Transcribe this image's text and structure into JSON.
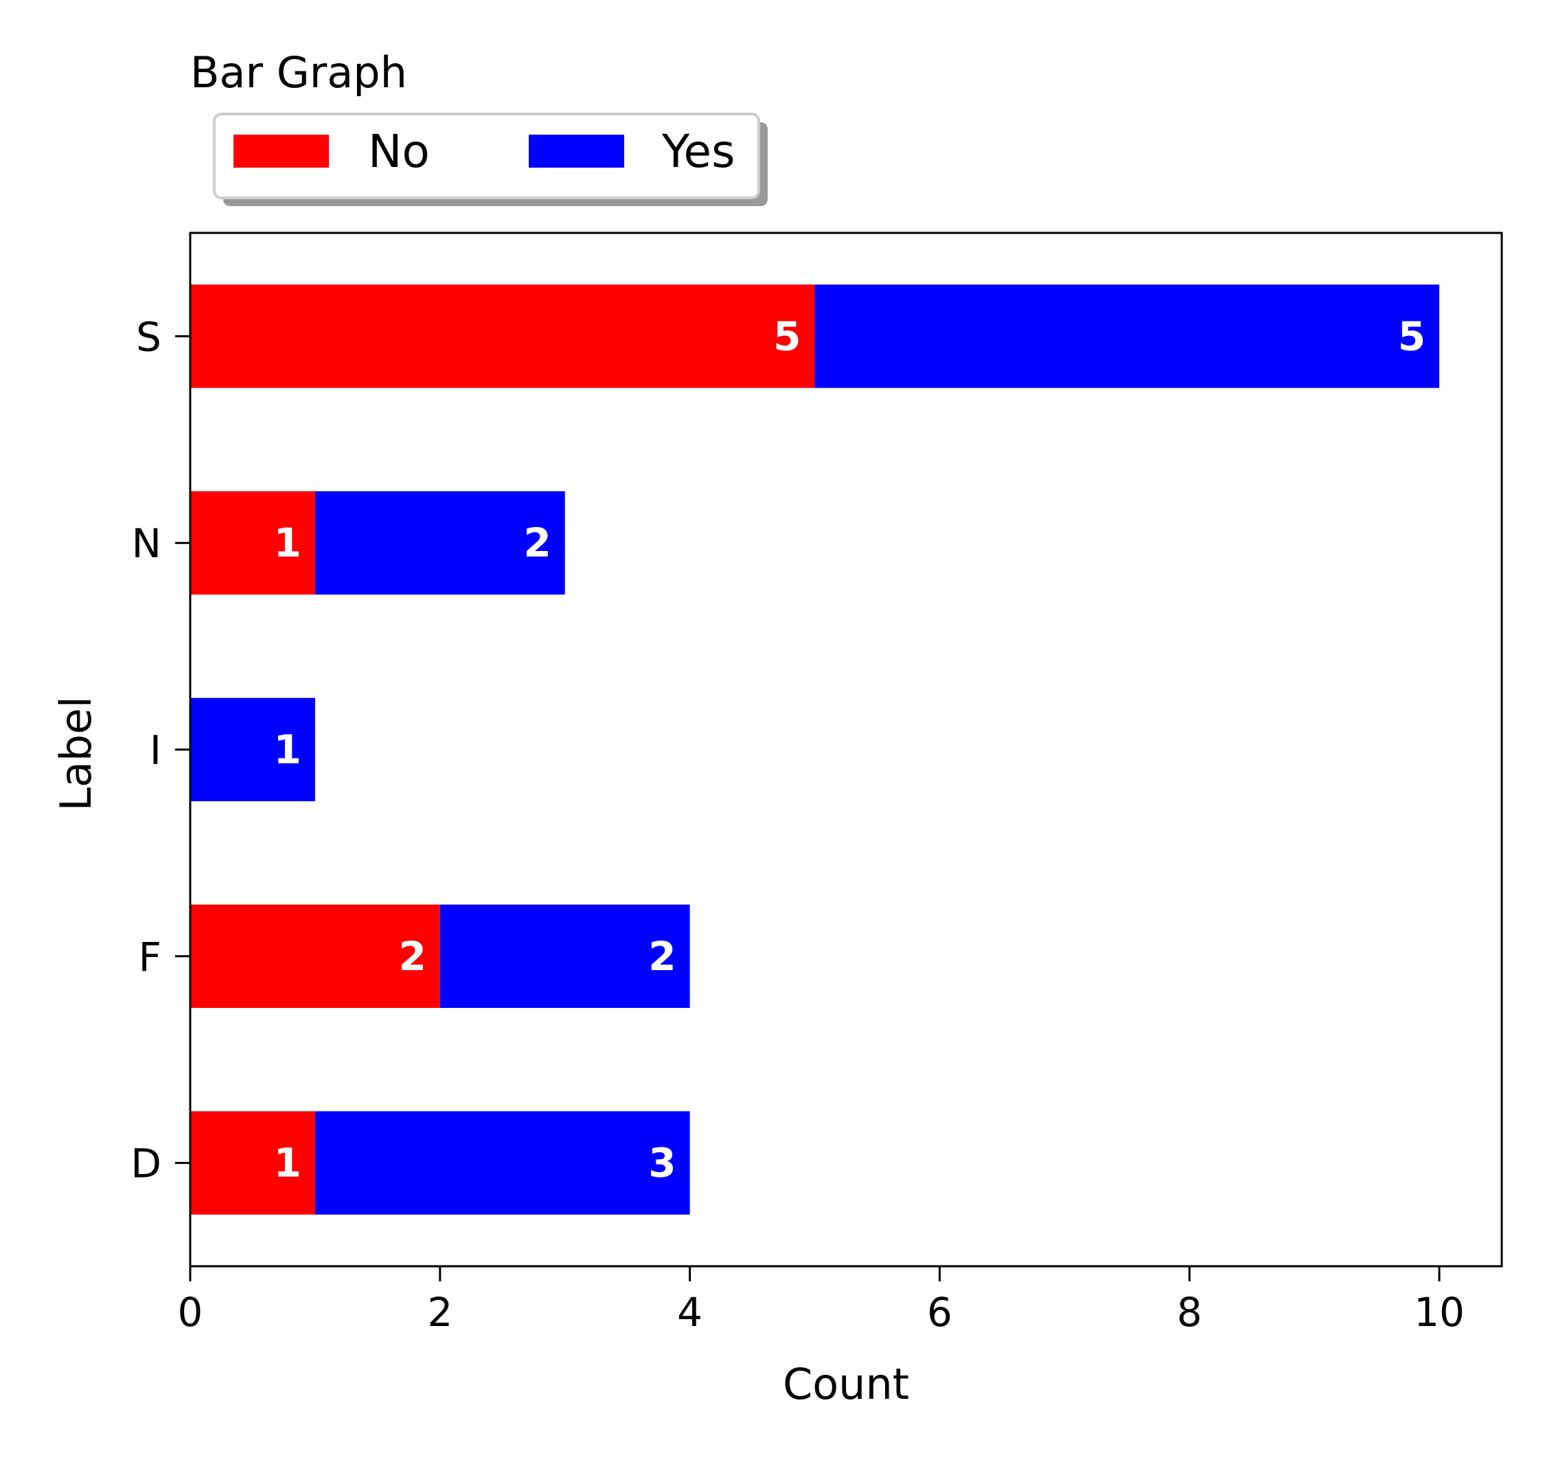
{
  "chart_data": {
    "type": "bar",
    "orientation": "horizontal",
    "stacked": true,
    "title": "Bar Graph",
    "xlabel": "Count",
    "ylabel": "Label",
    "categories": [
      "D",
      "F",
      "I",
      "N",
      "S"
    ],
    "series": [
      {
        "name": "No",
        "color": "#ff0000",
        "values": [
          1,
          2,
          0,
          1,
          5
        ]
      },
      {
        "name": "Yes",
        "color": "#0000ff",
        "values": [
          3,
          2,
          1,
          2,
          5
        ]
      }
    ],
    "data_labels": {
      "No": [
        "1",
        "2",
        "",
        "1",
        "5"
      ],
      "Yes": [
        "3",
        "2",
        "1",
        "2",
        "5"
      ]
    },
    "xlim": [
      0,
      10.5
    ],
    "xticks": [
      "0",
      "2",
      "4",
      "6",
      "8",
      "10"
    ],
    "grid": false,
    "legend_placement": "top-left, above plot"
  }
}
